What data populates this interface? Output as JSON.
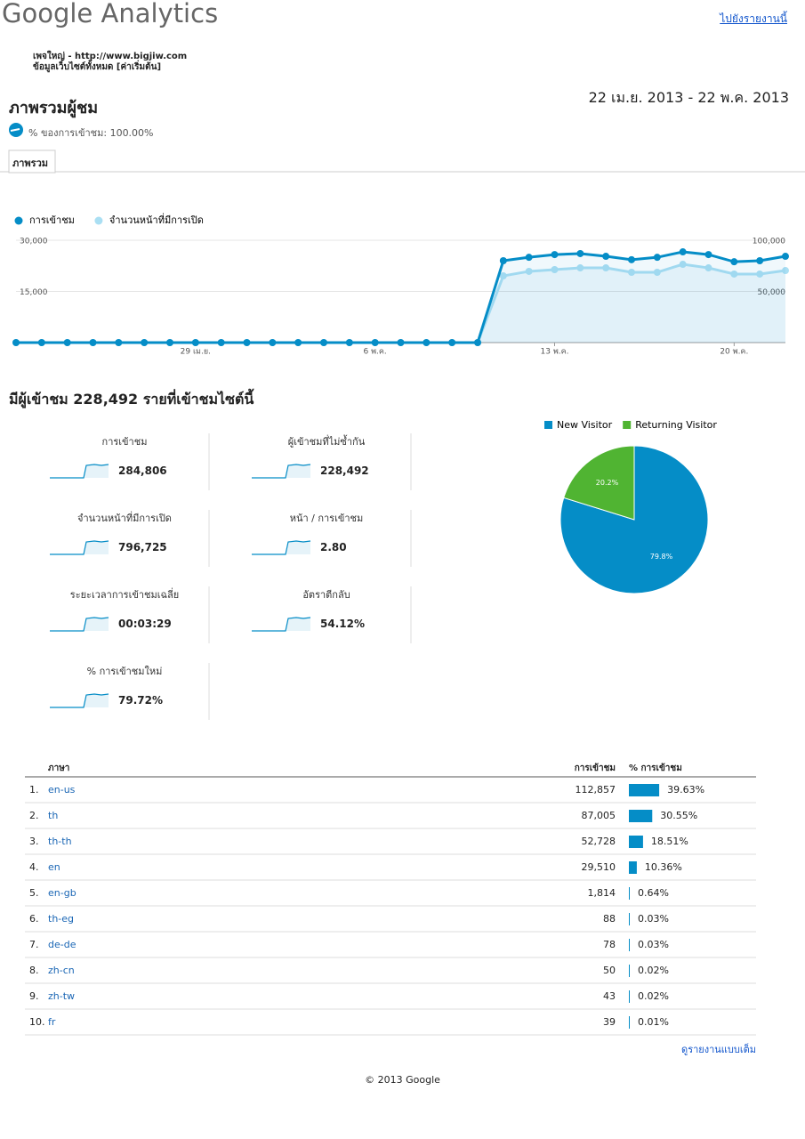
{
  "header": {
    "logo": "Google Analytics",
    "report_link": "ไปยังรายงานนี้",
    "site": "เพจใหญ่ - http://www.bigjiw.com",
    "profile": "ข้อมูลเว็บไซต์ทั้งหมด [ค่าเริ่มต้น]",
    "title": "ภาพรวมผู้ชม",
    "date_range": "22 เม.ย. 2013 - 22 พ.ค. 2013",
    "segment": "% ของการเข้าชม: 100.00%",
    "tab": "ภาพรวม"
  },
  "chart_data": [
    {
      "type": "line",
      "categories": [
        null,
        null,
        null,
        null,
        null,
        null,
        null,
        "29 เม.ย.",
        null,
        null,
        null,
        null,
        null,
        null,
        "6 พ.ค.",
        null,
        null,
        null,
        null,
        null,
        null,
        "13 พ.ค.",
        null,
        null,
        null,
        null,
        null,
        null,
        "20 พ.ค.",
        null,
        null
      ],
      "series": [
        {
          "name": "การเข้าชม",
          "color": "#058dc7",
          "values": [
            0,
            0,
            0,
            0,
            0,
            0,
            0,
            0,
            0,
            0,
            0,
            0,
            0,
            0,
            0,
            0,
            0,
            0,
            0,
            24000,
            25000,
            25800,
            26100,
            25300,
            24300,
            25000,
            26600,
            25800,
            23700,
            24000,
            25300
          ]
        },
        {
          "name": "จำนวนหน้าที่มีการเปิด",
          "color": "#aadff3",
          "axis": "y2",
          "values": [
            0,
            0,
            0,
            0,
            0,
            0,
            0,
            0,
            0,
            0,
            0,
            0,
            0,
            0,
            0,
            0,
            0,
            0,
            0,
            65200,
            69600,
            71300,
            73000,
            73000,
            68700,
            68700,
            76500,
            73000,
            67000,
            67000,
            70400
          ]
        }
      ],
      "ylim": [
        0,
        30000
      ],
      "yticks": [
        {
          "value": 30000,
          "label": "30,000"
        },
        {
          "value": 15000,
          "label": "15,000"
        }
      ],
      "y2lim": [
        0,
        100000
      ],
      "y2ticks": [
        {
          "value": 100000,
          "label": "100,000"
        },
        {
          "value": 50000,
          "label": "50,000"
        }
      ],
      "grid": true,
      "legend": "top-left"
    },
    {
      "type": "pie",
      "categories": [
        "New Visitor",
        "Returning Visitor"
      ],
      "values": [
        79.8,
        20.2
      ],
      "value_labels": [
        "79.8%",
        "20.2%"
      ],
      "colors": [
        "#058dc7",
        "#50b432"
      ],
      "legend": "top"
    }
  ],
  "summary": {
    "heading": "มีผู้เข้าชม 228,492 รายที่เข้าชมไซต์นี้",
    "metrics": [
      {
        "label": "การเข้าชม",
        "value": "284,806"
      },
      {
        "label": "ผู้เข้าชมที่ไม่ซ้ำกัน",
        "value": "228,492"
      },
      {
        "label": "จำนวนหน้าที่มีการเปิด",
        "value": "796,725"
      },
      {
        "label": "หน้า / การเข้าชม",
        "value": "2.80"
      },
      {
        "label": "ระยะเวลาการเข้าชมเฉลี่ย",
        "value": "00:03:29"
      },
      {
        "label": "อัตราตีกลับ",
        "value": "54.12%"
      },
      {
        "label": "% การเข้าชมใหม่",
        "value": "79.72%"
      }
    ]
  },
  "table": {
    "columns": [
      "ภาษา",
      "การเข้าชม",
      "% การเข้าชม"
    ],
    "rows": [
      {
        "rank": "1.",
        "language": "en-us",
        "visits": "112,857",
        "percent": {
          "value": 39.63,
          "label": "39.63%"
        }
      },
      {
        "rank": "2.",
        "language": "th",
        "visits": "87,005",
        "percent": {
          "value": 30.55,
          "label": "30.55%"
        }
      },
      {
        "rank": "3.",
        "language": "th-th",
        "visits": "52,728",
        "percent": {
          "value": 18.51,
          "label": "18.51%"
        }
      },
      {
        "rank": "4.",
        "language": "en",
        "visits": "29,510",
        "percent": {
          "value": 10.36,
          "label": "10.36%"
        }
      },
      {
        "rank": "5.",
        "language": "en-gb",
        "visits": "1,814",
        "percent": {
          "value": 0.64,
          "label": "0.64%"
        }
      },
      {
        "rank": "6.",
        "language": "th-eg",
        "visits": "88",
        "percent": {
          "value": 0.03,
          "label": "0.03%"
        }
      },
      {
        "rank": "7.",
        "language": "de-de",
        "visits": "78",
        "percent": {
          "value": 0.03,
          "label": "0.03%"
        }
      },
      {
        "rank": "8.",
        "language": "zh-cn",
        "visits": "50",
        "percent": {
          "value": 0.02,
          "label": "0.02%"
        }
      },
      {
        "rank": "9.",
        "language": "zh-tw",
        "visits": "43",
        "percent": {
          "value": 0.02,
          "label": "0.02%"
        }
      },
      {
        "rank": "10.",
        "language": "fr",
        "visits": "39",
        "percent": {
          "value": 0.01,
          "label": "0.01%"
        }
      }
    ],
    "full_report_link": "ดูรายงานแบบเต็ม"
  },
  "footer": {
    "copyright": "© 2013 Google"
  }
}
